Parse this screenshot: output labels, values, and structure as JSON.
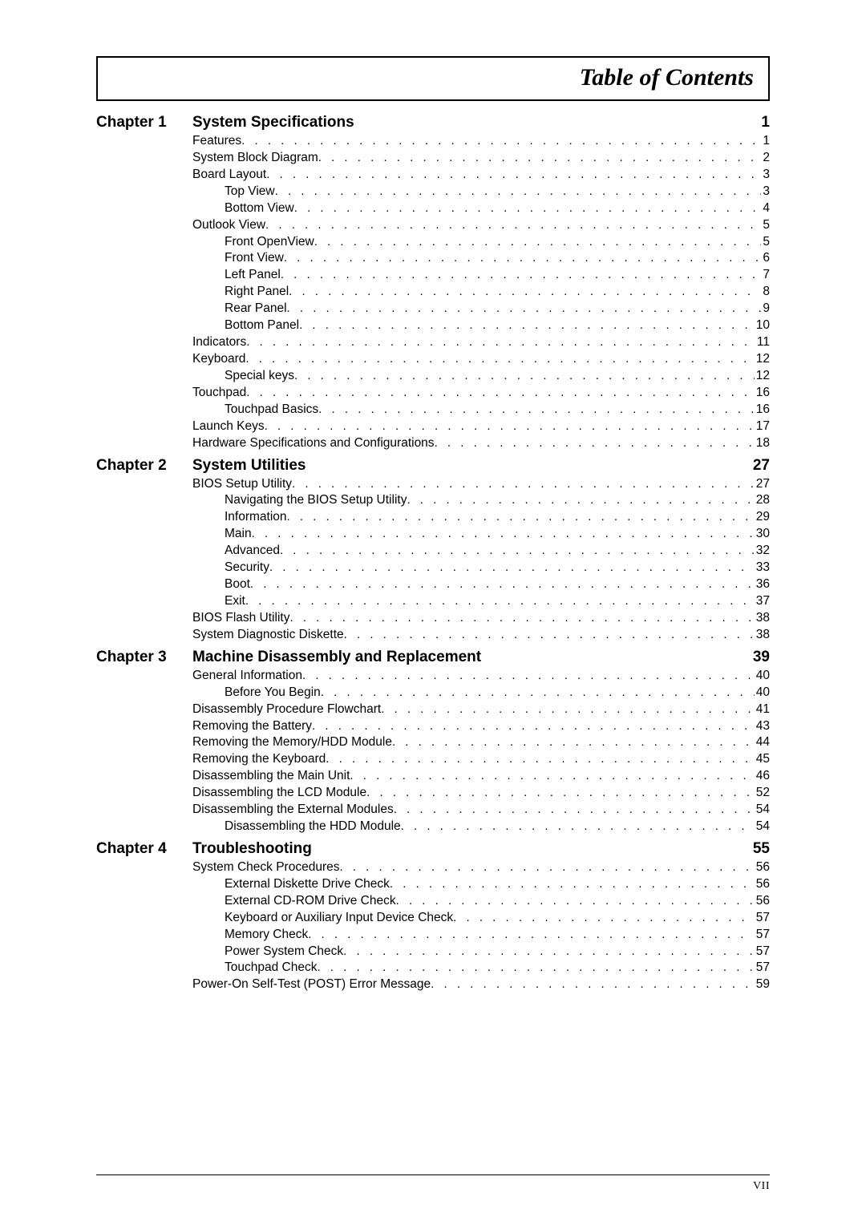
{
  "title": "Table of Contents",
  "page_footer": "VII",
  "chapters": [
    {
      "label": "Chapter 1",
      "title": "System Specifications",
      "page": "1",
      "entries": [
        {
          "level": 1,
          "label": "Features",
          "page": "1"
        },
        {
          "level": 1,
          "label": "System Block Diagram",
          "page": "2"
        },
        {
          "level": 1,
          "label": "Board Layout",
          "page": "3"
        },
        {
          "level": 2,
          "label": "Top View",
          "page": "3"
        },
        {
          "level": 2,
          "label": "Bottom View",
          "page": "4"
        },
        {
          "level": 1,
          "label": "Outlook View",
          "page": "5"
        },
        {
          "level": 2,
          "label": "Front OpenView",
          "page": "5"
        },
        {
          "level": 2,
          "label": "Front View",
          "page": "6"
        },
        {
          "level": 2,
          "label": "Left Panel",
          "page": "7"
        },
        {
          "level": 2,
          "label": "Right Panel",
          "page": "8"
        },
        {
          "level": 2,
          "label": "Rear Panel",
          "page": "9"
        },
        {
          "level": 2,
          "label": "Bottom Panel",
          "page": "10"
        },
        {
          "level": 1,
          "label": "Indicators",
          "page": "11"
        },
        {
          "level": 1,
          "label": "Keyboard",
          "page": "12"
        },
        {
          "level": 2,
          "label": "Special keys",
          "page": "12"
        },
        {
          "level": 1,
          "label": "Touchpad",
          "page": "16"
        },
        {
          "level": 2,
          "label": "Touchpad Basics",
          "page": "16"
        },
        {
          "level": 1,
          "label": "Launch Keys",
          "page": "17"
        },
        {
          "level": 1,
          "label": "Hardware Specifications and Configurations",
          "page": "18"
        }
      ]
    },
    {
      "label": "Chapter 2",
      "title": "System Utilities",
      "page": "27",
      "entries": [
        {
          "level": 1,
          "label": "BIOS Setup Utility",
          "page": "27"
        },
        {
          "level": 2,
          "label": "Navigating the BIOS Setup Utility",
          "page": "28"
        },
        {
          "level": 2,
          "label": "Information",
          "page": "29"
        },
        {
          "level": 2,
          "label": "Main",
          "page": "30"
        },
        {
          "level": 2,
          "label": "Advanced",
          "page": "32"
        },
        {
          "level": 2,
          "label": "Security",
          "page": "33"
        },
        {
          "level": 2,
          "label": "Boot",
          "page": "36"
        },
        {
          "level": 2,
          "label": "Exit",
          "page": "37"
        },
        {
          "level": 1,
          "label": "BIOS Flash Utility",
          "page": "38"
        },
        {
          "level": 1,
          "label": "System Diagnostic Diskette",
          "page": "38"
        }
      ]
    },
    {
      "label": "Chapter 3",
      "title": "Machine Disassembly and Replacement",
      "page": "39",
      "entries": [
        {
          "level": 1,
          "label": "General Information",
          "page": "40"
        },
        {
          "level": 2,
          "label": "Before You Begin",
          "page": "40"
        },
        {
          "level": 1,
          "label": "Disassembly Procedure Flowchart",
          "page": "41"
        },
        {
          "level": 1,
          "label": "Removing the Battery",
          "page": "43"
        },
        {
          "level": 1,
          "label": "Removing the Memory/HDD Module",
          "page": "44"
        },
        {
          "level": 1,
          "label": "Removing the Keyboard",
          "page": "45"
        },
        {
          "level": 1,
          "label": "Disassembling the Main Unit",
          "page": "46"
        },
        {
          "level": 1,
          "label": "Disassembling the LCD Module",
          "page": "52"
        },
        {
          "level": 1,
          "label": "Disassembling the External Modules",
          "page": "54"
        },
        {
          "level": 2,
          "label": "Disassembling the HDD Module",
          "page": "54"
        }
      ]
    },
    {
      "label": "Chapter 4",
      "title": "Troubleshooting",
      "page": "55",
      "entries": [
        {
          "level": 1,
          "label": "System Check Procedures",
          "page": "56"
        },
        {
          "level": 2,
          "label": "External Diskette Drive Check",
          "page": "56"
        },
        {
          "level": 2,
          "label": "External CD-ROM Drive Check",
          "page": "56"
        },
        {
          "level": 2,
          "label": "Keyboard or Auxiliary Input Device Check",
          "page": "57"
        },
        {
          "level": 2,
          "label": "Memory Check",
          "page": "57"
        },
        {
          "level": 2,
          "label": "Power System Check",
          "page": "57"
        },
        {
          "level": 2,
          "label": "Touchpad Check",
          "page": "57"
        },
        {
          "level": 1,
          "label": "Power-On Self-Test (POST) Error Message",
          "page": "59"
        }
      ]
    }
  ]
}
